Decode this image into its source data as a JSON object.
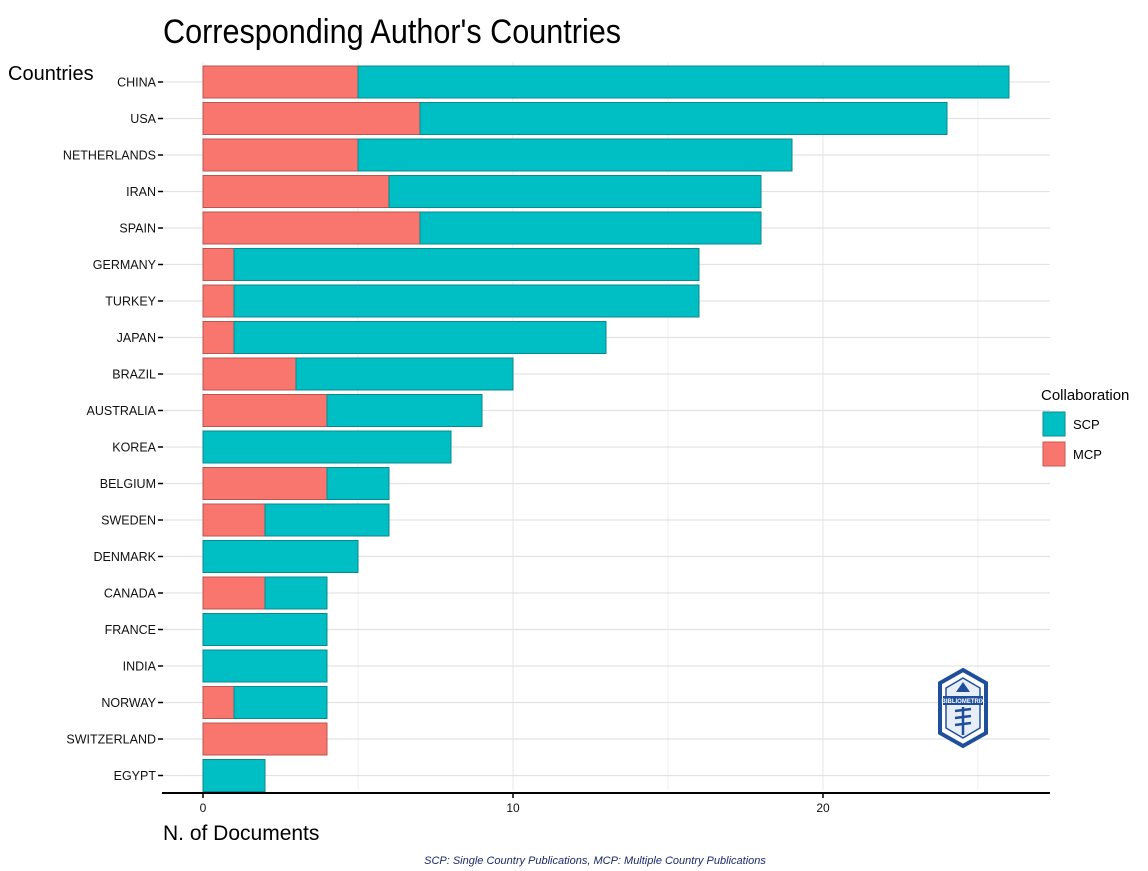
{
  "chart_data": {
    "type": "bar",
    "stacked": true,
    "orientation": "horizontal",
    "title": "Corresponding Author's Countries",
    "ylabel": "Countries",
    "xlabel": "N. of Documents",
    "caption": "SCP: Single Country Publications, MCP: Multiple Country Publications",
    "categories": [
      "CHINA",
      "USA",
      "NETHERLANDS",
      "IRAN",
      "SPAIN",
      "GERMANY",
      "TURKEY",
      "JAPAN",
      "BRAZIL",
      "AUSTRALIA",
      "KOREA",
      "BELGIUM",
      "SWEDEN",
      "DENMARK",
      "CANADA",
      "FRANCE",
      "INDIA",
      "NORWAY",
      "SWITZERLAND",
      "EGYPT"
    ],
    "series": [
      {
        "name": "MCP",
        "color": "#F8766D",
        "values": [
          5,
          7,
          5,
          6,
          7,
          1,
          1,
          1,
          3,
          4,
          0,
          4,
          2,
          0,
          2,
          0,
          0,
          1,
          4,
          0
        ]
      },
      {
        "name": "SCP",
        "color": "#00BFC4",
        "values": [
          21,
          17,
          14,
          12,
          11,
          15,
          15,
          12,
          7,
          5,
          8,
          2,
          4,
          5,
          2,
          4,
          4,
          3,
          0,
          2
        ]
      }
    ],
    "xlim": [
      0,
      26
    ],
    "xticks": [
      0,
      10,
      20
    ],
    "grid": true,
    "legend": {
      "title": "Collaboration",
      "position": "right",
      "entries": [
        {
          "label": "SCP",
          "color": "#00BFC4"
        },
        {
          "label": "MCP",
          "color": "#F8766D"
        }
      ]
    }
  },
  "logo": {
    "text": "BIBLIOMETRIX",
    "color": "#1f4e9a"
  }
}
